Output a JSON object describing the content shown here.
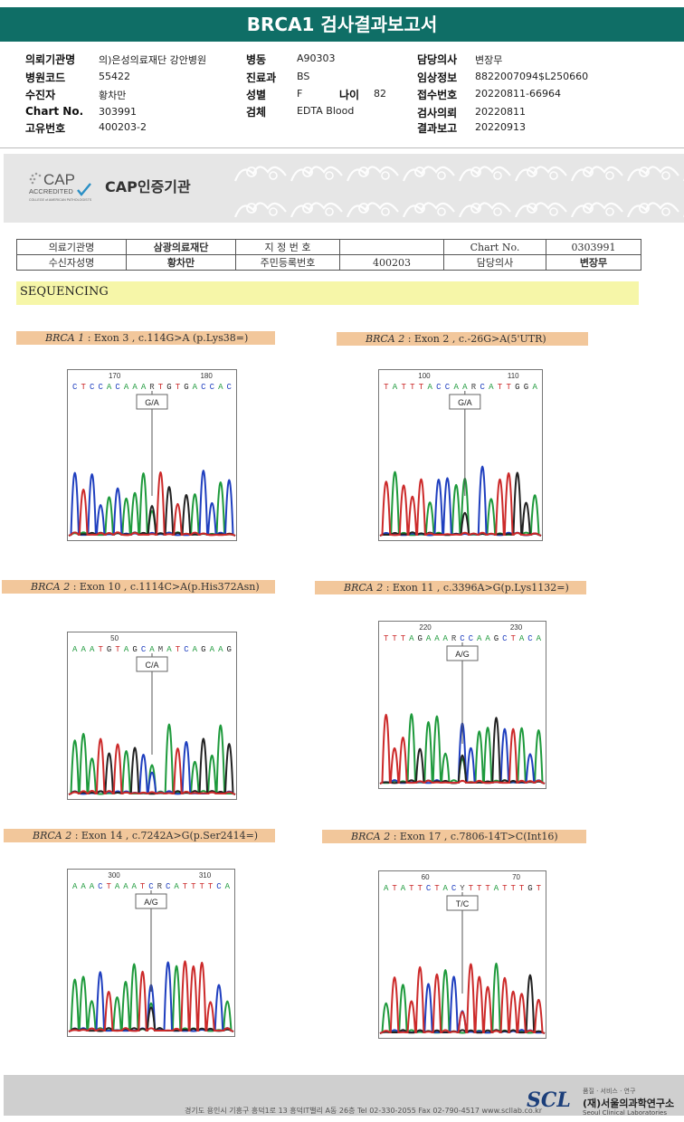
{
  "report": {
    "title": "BRCA1 검사결과보고서",
    "col1": [
      {
        "label": "의뢰기관명",
        "value": "의)은성의료재단 강안병원"
      },
      {
        "label": "병원코드",
        "value": "55422"
      },
      {
        "label": "수진자",
        "value": "황차만"
      },
      {
        "label": "Chart No.",
        "value": "303991"
      },
      {
        "label": "고유번호",
        "value": "400203-2"
      }
    ],
    "col2": [
      {
        "label": "병동",
        "value": "A90303"
      },
      {
        "label": "진료과",
        "value": "BS"
      },
      {
        "label": "성별",
        "value": "F"
      },
      {
        "label": "검체",
        "value": "EDTA Blood"
      }
    ],
    "age": {
      "label": "나이",
      "value": "82"
    },
    "col3": [
      {
        "label": "담당의사",
        "value": "변장무"
      },
      {
        "label": "임상정보",
        "value": "8822007094$L250660"
      },
      {
        "label": "접수번호",
        "value": "20220811-66964"
      },
      {
        "label": "검사의뢰",
        "value": "20220811"
      },
      {
        "label": "결과보고",
        "value": "20220913"
      }
    ]
  },
  "cap": {
    "logo_text": "CAP",
    "logo_sub": "ACCREDITED",
    "logo_org": "COLLEGE of AMERICAN PATHOLOGISTS",
    "label": "CAP인증기관"
  },
  "info_table": {
    "r1": [
      "의료기관명",
      "삼광의료재단",
      "지 정 번 호",
      "",
      "Chart No.",
      "0303991"
    ],
    "r2": [
      "수신자성명",
      "황차만",
      "주민등록번호",
      "400203",
      "담당의사",
      "변장무"
    ]
  },
  "section": {
    "title": "SEQUENCING"
  },
  "panels": [
    {
      "gene": "BRCA 1",
      "rest": ": Exon 3 , c.114G>A (p.Lys38=)",
      "seq": "CTCCACAAARTGTGACCAC",
      "pos1": "170",
      "pos2": "180",
      "call": "G/A"
    },
    {
      "gene": "BRCA 2",
      "rest": ": Exon 2 , c.-26G>A(5'UTR)",
      "seq": "TATTTACCAARCATTGGA",
      "pos1": "100",
      "pos2": "110",
      "call": "G/A"
    },
    {
      "gene": "BRCA 2",
      "rest": ": Exon 10 , c.1114C>A(p.His372Asn)",
      "seq": "AAATGTAGCAMATCAGAAG",
      "pos1": "50",
      "pos2": "",
      "call": "C/A"
    },
    {
      "gene": "BRCA 2",
      "rest": ": Exon 11 , c.3396A>G(p.Lys1132=)",
      "seq": "TTTAGAAARCCAAGCTACA",
      "pos1": "220",
      "pos2": "230",
      "call": "A/G"
    },
    {
      "gene": "BRCA 2",
      "rest": ": Exon 14 , c.7242A>G(p.Ser2414=)",
      "seq": "AAACTAAATCRCATTTTCA",
      "pos1": "300",
      "pos2": "310",
      "call": "A/G"
    },
    {
      "gene": "BRCA 2",
      "rest": ": Exon 17 , c.7806-14T>C(Int16)",
      "seq": "ATATTCTACYTTTATTTGT",
      "pos1": "60",
      "pos2": "70",
      "call": "T/C"
    }
  ],
  "footer": {
    "address": "경기도 용인시 기흥구 흥덕1로 13 흥덕IT밸리 A동 26층 Tel 02-330-2055 Fax 02-790-4517 www.scllab.co.kr",
    "logo": "SCL",
    "slogan": "품질 · 서비스 · 연구",
    "name": "(재)서울의과학연구소",
    "name_en": "Seoul Clinical Laboratories"
  },
  "colors": {
    "header": "#0f6e66",
    "base_A": "#1e9a3c",
    "base_C": "#1f3fbf",
    "base_G": "#222222",
    "base_T": "#cc2a2a"
  }
}
